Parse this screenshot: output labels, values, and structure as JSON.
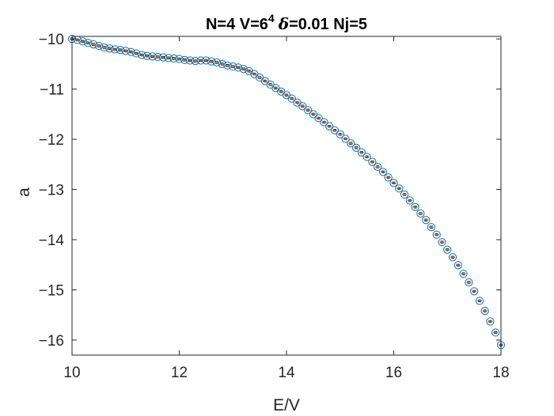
{
  "chart_data": {
    "type": "scatter",
    "title_parts": {
      "a": "N=4 V=6",
      "sup": "4",
      "delta": "δ",
      "b": "=0.01 Nj=5"
    },
    "xlabel": "E/V",
    "ylabel": "a",
    "xlim": [
      10,
      18
    ],
    "ylim": [
      -16.3,
      -9.95
    ],
    "xticks": [
      10,
      12,
      14,
      16,
      18
    ],
    "yticks": [
      -10,
      -11,
      -12,
      -13,
      -14,
      -15,
      -16
    ],
    "grid": false,
    "legend": "none",
    "colors": {
      "marker": "#0072BD",
      "errorbar": "#D95319",
      "cap": "#000000",
      "axis": "#262626"
    },
    "series": [
      {
        "marker": "circle",
        "x": [
          10.0,
          10.1,
          10.2,
          10.3,
          10.4,
          10.5,
          10.6,
          10.7,
          10.8,
          10.9,
          11.0,
          11.1,
          11.2,
          11.3,
          11.4,
          11.5,
          11.6,
          11.7,
          11.8,
          11.9,
          12.0,
          12.1,
          12.2,
          12.3,
          12.4,
          12.5,
          12.6,
          12.7,
          12.8,
          12.9,
          13.0,
          13.1,
          13.2,
          13.3,
          13.4,
          13.5,
          13.6,
          13.7,
          13.8,
          13.9,
          14.0,
          14.1,
          14.2,
          14.3,
          14.4,
          14.5,
          14.6,
          14.7,
          14.8,
          14.9,
          15.0,
          15.1,
          15.2,
          15.3,
          15.4,
          15.5,
          15.6,
          15.7,
          15.8,
          15.9,
          16.0,
          16.1,
          16.2,
          16.3,
          16.4,
          16.5,
          16.6,
          16.7,
          16.8,
          16.9,
          17.0,
          17.1,
          17.2,
          17.3,
          17.4,
          17.5,
          17.6,
          17.7,
          17.8,
          17.9,
          18.0
        ],
        "y": [
          -10.0,
          -10.02,
          -10.05,
          -10.08,
          -10.11,
          -10.14,
          -10.17,
          -10.19,
          -10.21,
          -10.22,
          -10.24,
          -10.26,
          -10.29,
          -10.32,
          -10.34,
          -10.35,
          -10.36,
          -10.37,
          -10.38,
          -10.39,
          -10.4,
          -10.42,
          -10.43,
          -10.44,
          -10.43,
          -10.43,
          -10.45,
          -10.47,
          -10.5,
          -10.53,
          -10.55,
          -10.57,
          -10.6,
          -10.64,
          -10.7,
          -10.77,
          -10.84,
          -10.91,
          -10.98,
          -11.05,
          -11.12,
          -11.19,
          -11.27,
          -11.34,
          -11.42,
          -11.5,
          -11.58,
          -11.66,
          -11.74,
          -11.82,
          -11.9,
          -11.99,
          -12.08,
          -12.17,
          -12.26,
          -12.35,
          -12.45,
          -12.55,
          -12.65,
          -12.76,
          -12.87,
          -12.98,
          -13.1,
          -13.22,
          -13.35,
          -13.48,
          -13.61,
          -13.75,
          -13.9,
          -14.05,
          -14.2,
          -14.35,
          -14.51,
          -14.68,
          -14.85,
          -15.03,
          -15.22,
          -15.42,
          -15.63,
          -15.85,
          -16.1
        ],
        "error": [
          0.02,
          0.02,
          0.02,
          0.02,
          0.02,
          0.02,
          0.02,
          0.02,
          0.02,
          0.02,
          0.02,
          0.02,
          0.02,
          0.02,
          0.02,
          0.02,
          0.02,
          0.02,
          0.02,
          0.02,
          0.02,
          0.02,
          0.02,
          0.02,
          0.02,
          0.02,
          0.02,
          0.02,
          0.02,
          0.02,
          0.02,
          0.02,
          0.02,
          0.02,
          0.02,
          0.02,
          0.02,
          0.02,
          0.02,
          0.02,
          0.02,
          0.02,
          0.02,
          0.02,
          0.02,
          0.02,
          0.02,
          0.02,
          0.02,
          0.02,
          0.02,
          0.02,
          0.02,
          0.02,
          0.02,
          0.02,
          0.02,
          0.02,
          0.02,
          0.02,
          0.02,
          0.02,
          0.02,
          0.02,
          0.02,
          0.02,
          0.02,
          0.02,
          0.02,
          0.02,
          0.02,
          0.02,
          0.02,
          0.02,
          0.02,
          0.02,
          0.02,
          0.02,
          0.02,
          0.02,
          0.02
        ]
      }
    ]
  }
}
